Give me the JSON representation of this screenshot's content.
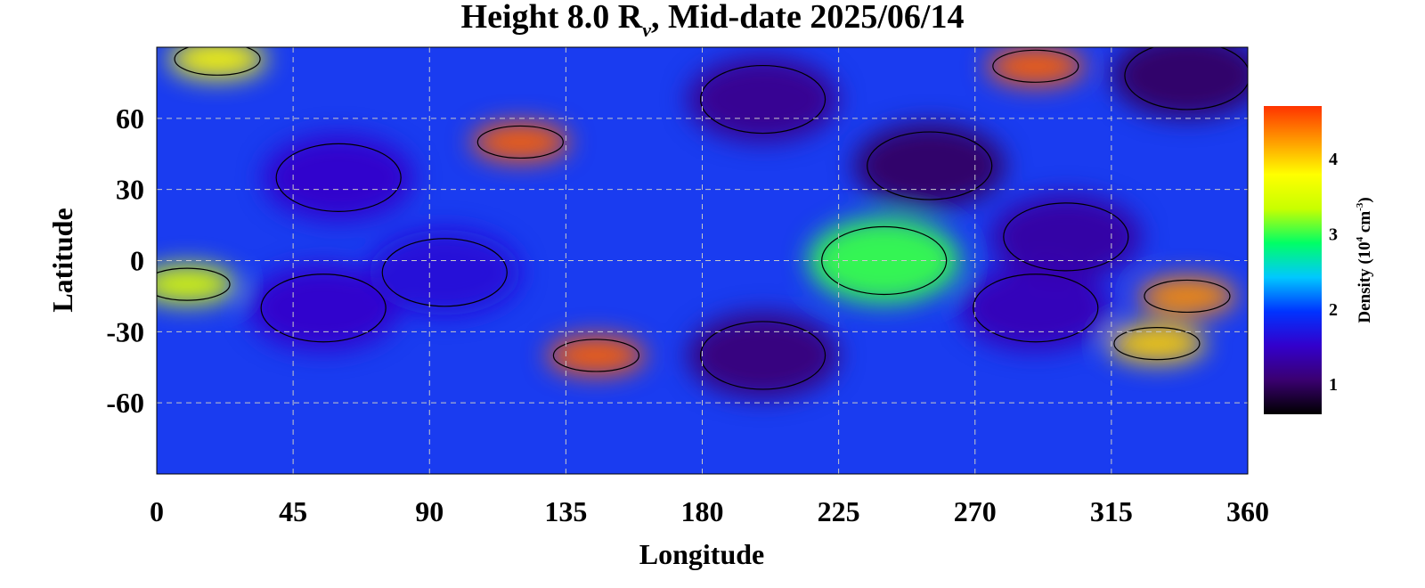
{
  "chart_data": {
    "type": "heatmap",
    "title": {
      "prefix": "Height 8.0 R",
      "subscript": "v",
      "suffix": ", Mid-date 2025/06/14"
    },
    "xlabel": "Longitude",
    "ylabel": "Latitude",
    "xlim": [
      0,
      360
    ],
    "ylim": [
      -90,
      90
    ],
    "xticks": [
      0,
      45,
      90,
      135,
      180,
      225,
      270,
      315,
      360
    ],
    "yticks": [
      60,
      30,
      0,
      -30,
      -60
    ],
    "grid": true,
    "colorbar": {
      "label_prefix": "Density (10",
      "label_exp1": "4",
      "label_mid": " cm",
      "label_exp2": "-3",
      "label_suffix": ")",
      "range": [
        0.6,
        4.7
      ],
      "ticks": [
        1,
        2,
        3,
        4
      ],
      "colors": [
        "#000000",
        "#3a0070",
        "#3300cc",
        "#0033ff",
        "#00c8ff",
        "#00ff66",
        "#c8ff00",
        "#ffff00",
        "#ff9900",
        "#ff3300"
      ]
    },
    "features": [
      {
        "lon": 340,
        "lat": 78,
        "value": 1.0
      },
      {
        "lon": 255,
        "lat": 40,
        "value": 1.0
      },
      {
        "lon": 300,
        "lat": 10,
        "value": 1.3
      },
      {
        "lon": 200,
        "lat": 68,
        "value": 1.2
      },
      {
        "lon": 200,
        "lat": -40,
        "value": 1.1
      },
      {
        "lon": 290,
        "lat": -20,
        "value": 1.4
      },
      {
        "lon": 60,
        "lat": 35,
        "value": 1.5
      },
      {
        "lon": 55,
        "lat": -20,
        "value": 1.5
      },
      {
        "lon": 95,
        "lat": -5,
        "value": 1.6
      },
      {
        "lon": 290,
        "lat": 82,
        "value": 4.5
      },
      {
        "lon": 120,
        "lat": 50,
        "value": 4.5
      },
      {
        "lon": 145,
        "lat": -40,
        "value": 4.5
      },
      {
        "lon": 340,
        "lat": -15,
        "value": 4.3
      },
      {
        "lon": 330,
        "lat": -35,
        "value": 4.0
      },
      {
        "lon": 240,
        "lat": 0,
        "value": 3.0
      },
      {
        "lon": 10,
        "lat": -10,
        "value": 3.5
      },
      {
        "lon": 20,
        "lat": 85,
        "value": 3.8
      }
    ]
  }
}
